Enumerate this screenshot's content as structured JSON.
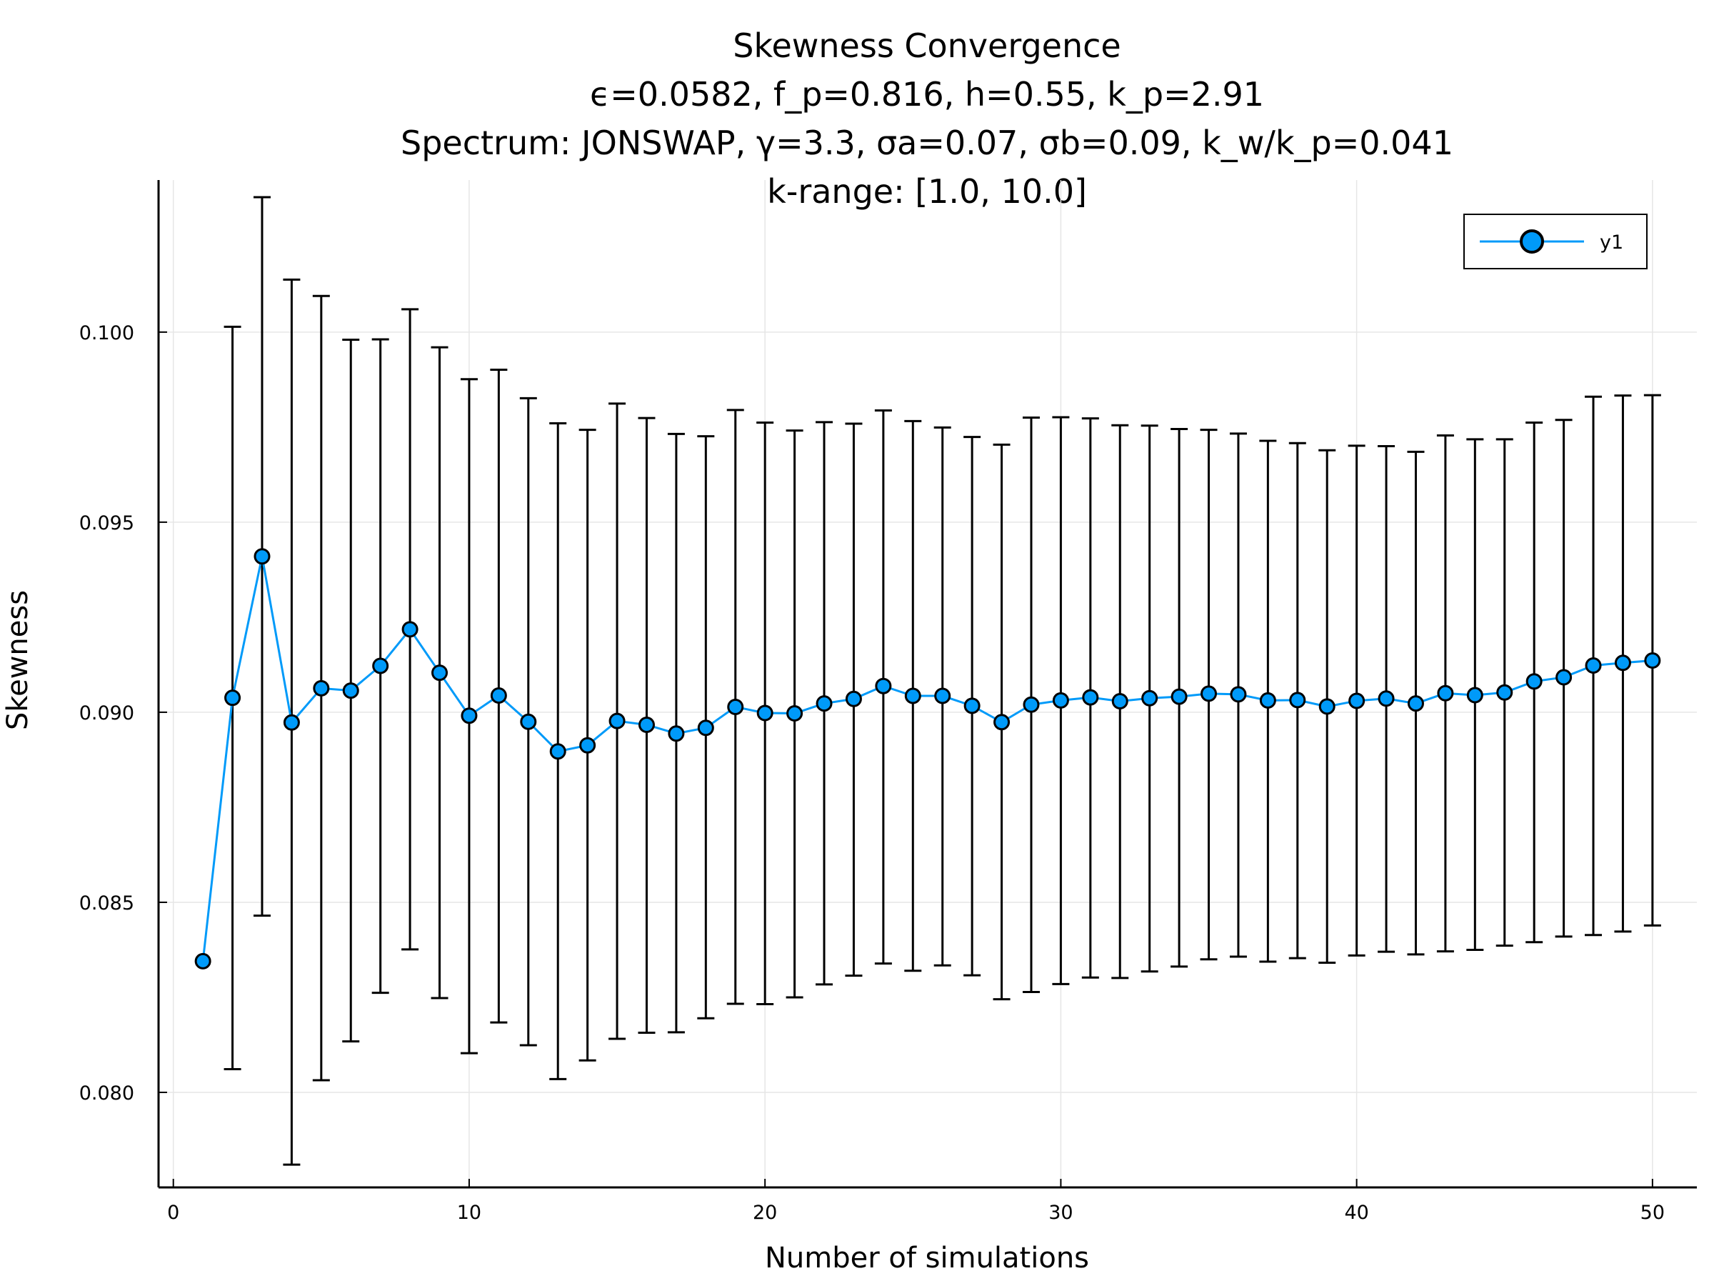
{
  "chart_data": {
    "type": "scatter",
    "title_lines": [
      "Skewness Convergence",
      "ϵ=0.0582, f_p=0.816, h=0.55, k_p=2.91",
      "Spectrum: JONSWAP, γ=3.3, σa=0.07, σb=0.09, k_w/k_p=0.041",
      "k-range: [1.0, 10.0]"
    ],
    "xlabel": "Number of simulations",
    "ylabel": "Skewness",
    "xlim": [
      -0.5,
      51.5
    ],
    "ylim": [
      0.0775,
      0.104
    ],
    "xticks": [
      0,
      10,
      20,
      30,
      40,
      50
    ],
    "yticks": [
      0.08,
      0.085,
      0.09,
      0.095,
      0.1
    ],
    "ytick_labels": [
      "0.080",
      "0.085",
      "0.090",
      "0.095",
      "0.100"
    ],
    "grid": true,
    "legend_position": "top-right",
    "series": [
      {
        "name": "y1",
        "color": "#009af9",
        "x": [
          1,
          2,
          3,
          4,
          5,
          6,
          7,
          8,
          9,
          10,
          11,
          12,
          13,
          14,
          15,
          16,
          17,
          18,
          19,
          20,
          21,
          22,
          23,
          24,
          25,
          26,
          27,
          28,
          29,
          30,
          31,
          32,
          33,
          34,
          35,
          36,
          37,
          38,
          39,
          40,
          41,
          42,
          43,
          44,
          45,
          46,
          47,
          48,
          49,
          50
        ],
        "y": [
          0.08345,
          0.09038,
          0.0941,
          0.08973,
          0.09063,
          0.09057,
          0.09122,
          0.09218,
          0.09104,
          0.08991,
          0.09044,
          0.08975,
          0.08897,
          0.08913,
          0.08977,
          0.08967,
          0.08944,
          0.08959,
          0.09014,
          0.08998,
          0.08997,
          0.09023,
          0.09035,
          0.09069,
          0.09043,
          0.09043,
          0.09017,
          0.08974,
          0.0902,
          0.09031,
          0.09039,
          0.09029,
          0.09037,
          0.09041,
          0.09049,
          0.09047,
          0.09031,
          0.09032,
          0.09015,
          0.0903,
          0.09036,
          0.09023,
          0.0905,
          0.09045,
          0.09052,
          0.09081,
          0.09092,
          0.09123,
          0.0913,
          0.09136
        ],
        "err_low": [
          null,
          0.08061,
          0.08465,
          0.0781,
          0.08032,
          0.08134,
          0.08262,
          0.08376,
          0.08248,
          0.08103,
          0.08184,
          0.08124,
          0.08035,
          0.08084,
          0.08141,
          0.08157,
          0.08158,
          0.08195,
          0.08233,
          0.08232,
          0.0825,
          0.08284,
          0.08307,
          0.08339,
          0.0832,
          0.08334,
          0.08308,
          0.08245,
          0.08264,
          0.08285,
          0.08302,
          0.08301,
          0.08318,
          0.08331,
          0.0835,
          0.08357,
          0.08344,
          0.08353,
          0.08341,
          0.0836,
          0.0837,
          0.08363,
          0.08371,
          0.08375,
          0.08386,
          0.08395,
          0.0841,
          0.08414,
          0.08423,
          0.08439
        ],
        "err_high": [
          null,
          0.10014,
          0.10355,
          0.10138,
          0.10095,
          0.0998,
          0.09981,
          0.1006,
          0.0996,
          0.09876,
          0.09901,
          0.09826,
          0.0976,
          0.09743,
          0.09812,
          0.09774,
          0.09732,
          0.09726,
          0.09795,
          0.09762,
          0.09741,
          0.09763,
          0.09759,
          0.09794,
          0.09766,
          0.09749,
          0.09724,
          0.09704,
          0.09775,
          0.09776,
          0.09773,
          0.09755,
          0.09754,
          0.09745,
          0.09743,
          0.09733,
          0.09714,
          0.09708,
          0.09689,
          0.09701,
          0.097,
          0.09685,
          0.09728,
          0.09718,
          0.09718,
          0.09762,
          0.09769,
          0.0983,
          0.09833,
          0.09834
        ]
      }
    ]
  }
}
